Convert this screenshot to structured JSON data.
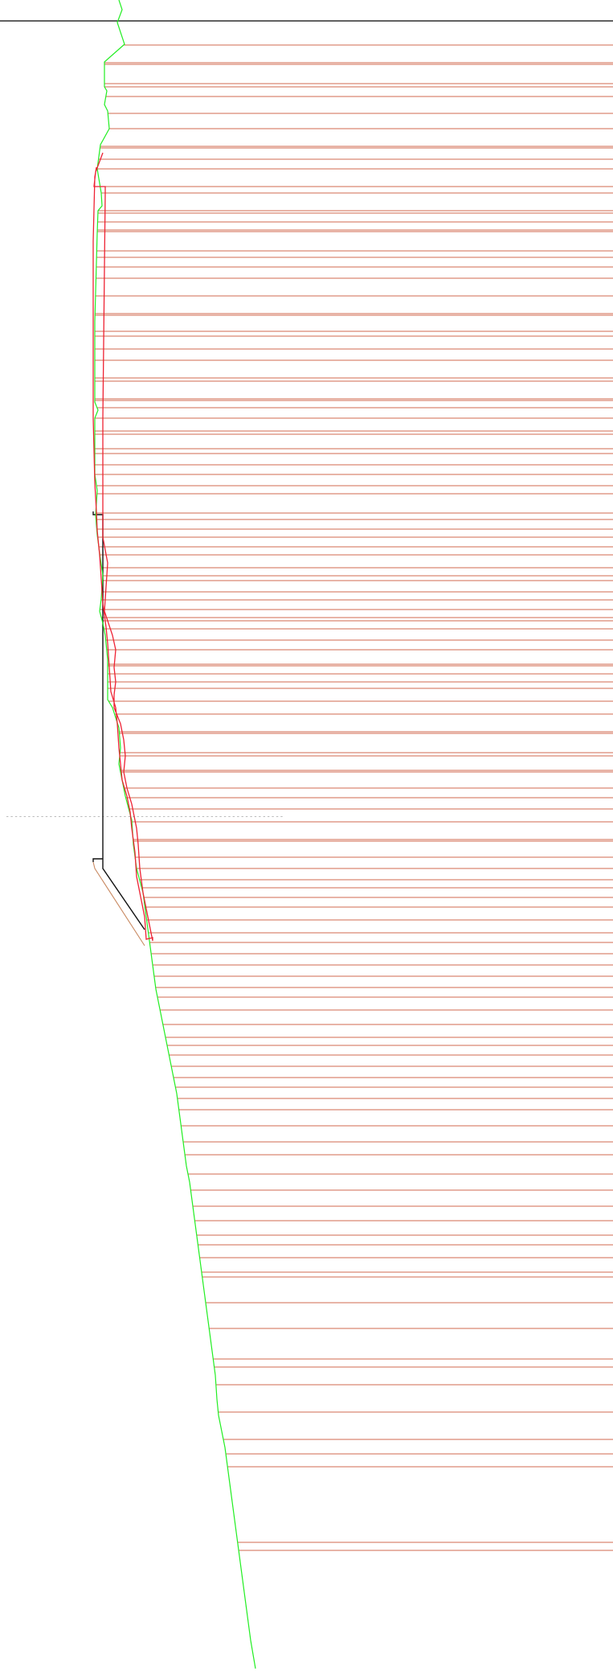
{
  "diagram": {
    "kind": "borehole-profile",
    "colors": {
      "background": "#ffffff",
      "top_line": "#000000",
      "strata_lines": "#d2694f",
      "green_profile": "#22ee22",
      "red_profile": "#ee2233",
      "black_outline": "#111111",
      "tan_outline": "#c98a62",
      "dashed_marker": "#333333"
    },
    "marker_text": "— — — — — — — — — — — — — — — — — — — — — — — — — — — — — — — — — — — — — — — — — — — — — — — — — — — — — — — — — — — — — — — —"
  }
}
